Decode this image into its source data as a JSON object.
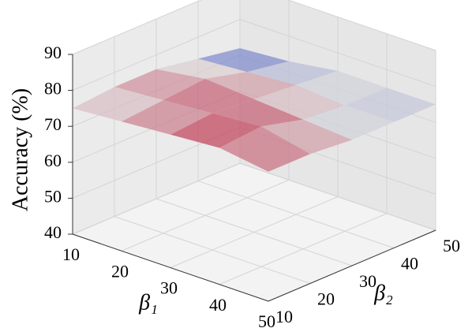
{
  "chart_data": {
    "type": "surface3d",
    "xlabel": "β₁",
    "ylabel": "β₂",
    "zlabel": "Accuracy (%)",
    "x": [
      10,
      20,
      30,
      40,
      50
    ],
    "y": [
      10,
      20,
      30,
      40,
      50
    ],
    "z": [
      [
        75,
        76,
        76,
        74,
        72
      ],
      [
        76,
        77,
        78,
        75,
        73
      ],
      [
        77,
        78,
        77,
        76,
        75
      ],
      [
        78,
        79,
        76,
        75,
        75
      ],
      [
        76,
        76,
        75,
        75,
        75
      ]
    ],
    "xlim": [
      10,
      50
    ],
    "ylim": [
      10,
      50
    ],
    "zlim": [
      40,
      90
    ],
    "xticks": [
      10,
      20,
      30,
      40,
      50
    ],
    "yticks": [
      10,
      20,
      30,
      40,
      50
    ],
    "zticks": [
      40,
      50,
      60,
      70,
      80,
      90
    ],
    "colormap": "coolwarm",
    "grid": true
  }
}
